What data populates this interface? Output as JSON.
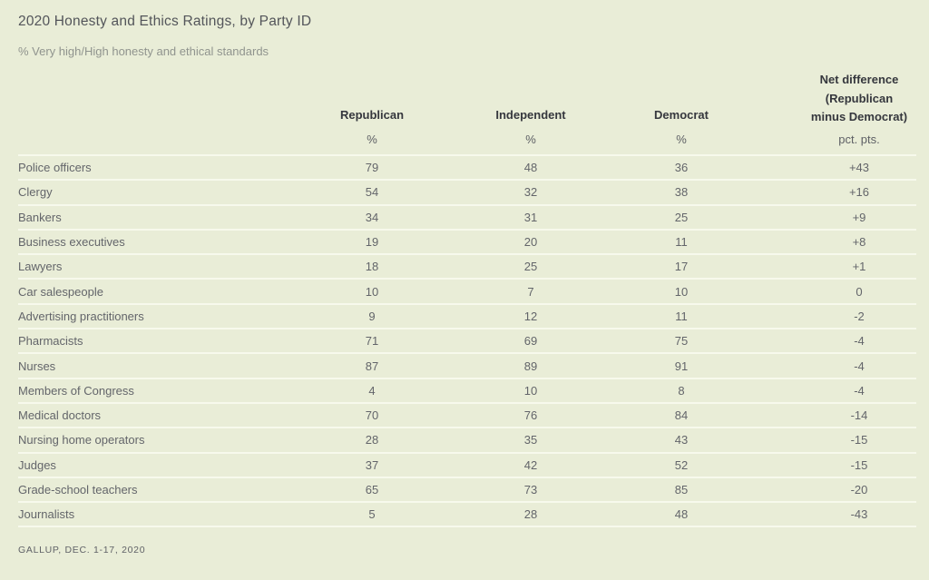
{
  "page": {
    "background_color": "#e9edd7",
    "separator_color": "#f7f9ec",
    "header_text_color": "#35373d",
    "body_text_color": "#63656a"
  },
  "header": {
    "title": "2020 Honesty and Ethics Ratings, by Party ID",
    "subtitle": "% Very high/High honesty and ethical standards"
  },
  "columns": {
    "republican": {
      "label": "Republican",
      "unit": "%"
    },
    "independent": {
      "label": "Independent",
      "unit": "%"
    },
    "democrat": {
      "label": "Democrat",
      "unit": "%"
    },
    "net": {
      "label_line1": "Net difference",
      "label_line2": "(Republican",
      "label_line3": "minus Democrat)",
      "unit": "pct. pts."
    }
  },
  "table": {
    "rows": [
      {
        "label": "Police officers",
        "rep": "79",
        "ind": "48",
        "dem": "36",
        "net": "+43"
      },
      {
        "label": "Clergy",
        "rep": "54",
        "ind": "32",
        "dem": "38",
        "net": "+16"
      },
      {
        "label": "Bankers",
        "rep": "34",
        "ind": "31",
        "dem": "25",
        "net": "+9"
      },
      {
        "label": "Business executives",
        "rep": "19",
        "ind": "20",
        "dem": "11",
        "net": "+8"
      },
      {
        "label": "Lawyers",
        "rep": "18",
        "ind": "25",
        "dem": "17",
        "net": "+1"
      },
      {
        "label": "Car salespeople",
        "rep": "10",
        "ind": "7",
        "dem": "10",
        "net": "0"
      },
      {
        "label": "Advertising practitioners",
        "rep": "9",
        "ind": "12",
        "dem": "11",
        "net": "-2"
      },
      {
        "label": "Pharmacists",
        "rep": "71",
        "ind": "69",
        "dem": "75",
        "net": "-4"
      },
      {
        "label": "Nurses",
        "rep": "87",
        "ind": "89",
        "dem": "91",
        "net": "-4"
      },
      {
        "label": "Members of Congress",
        "rep": "4",
        "ind": "10",
        "dem": "8",
        "net": "-4"
      },
      {
        "label": "Medical doctors",
        "rep": "70",
        "ind": "76",
        "dem": "84",
        "net": "-14"
      },
      {
        "label": "Nursing home operators",
        "rep": "28",
        "ind": "35",
        "dem": "43",
        "net": "-15"
      },
      {
        "label": "Judges",
        "rep": "37",
        "ind": "42",
        "dem": "52",
        "net": "-15"
      },
      {
        "label": "Grade-school teachers",
        "rep": "65",
        "ind": "73",
        "dem": "85",
        "net": "-20"
      },
      {
        "label": "Journalists",
        "rep": "5",
        "ind": "28",
        "dem": "48",
        "net": "-43"
      }
    ]
  },
  "footer": {
    "source": "GALLUP, DEC. 1-17, 2020"
  },
  "chart_data": {
    "type": "table",
    "title": "2020 Honesty and Ethics Ratings, by Party ID",
    "subtitle": "% Very high/High honesty and ethical standards",
    "source": "GALLUP, DEC. 1-17, 2020",
    "categories": [
      "Police officers",
      "Clergy",
      "Bankers",
      "Business executives",
      "Lawyers",
      "Car salespeople",
      "Advertising practitioners",
      "Pharmacists",
      "Nurses",
      "Members of Congress",
      "Medical doctors",
      "Nursing home operators",
      "Judges",
      "Grade-school teachers",
      "Journalists"
    ],
    "series": [
      {
        "name": "Republican (%)",
        "values": [
          79,
          54,
          34,
          19,
          18,
          10,
          9,
          71,
          87,
          4,
          70,
          28,
          37,
          65,
          5
        ]
      },
      {
        "name": "Independent (%)",
        "values": [
          48,
          32,
          31,
          20,
          25,
          7,
          12,
          69,
          89,
          10,
          76,
          35,
          42,
          73,
          28
        ]
      },
      {
        "name": "Democrat (%)",
        "values": [
          36,
          38,
          25,
          11,
          17,
          10,
          11,
          75,
          91,
          8,
          84,
          43,
          52,
          85,
          48
        ]
      },
      {
        "name": "Net difference (Republican minus Democrat, pct. pts.)",
        "values": [
          43,
          16,
          9,
          8,
          1,
          0,
          -2,
          -4,
          -4,
          -4,
          -14,
          -15,
          -15,
          -20,
          -43
        ]
      }
    ]
  }
}
